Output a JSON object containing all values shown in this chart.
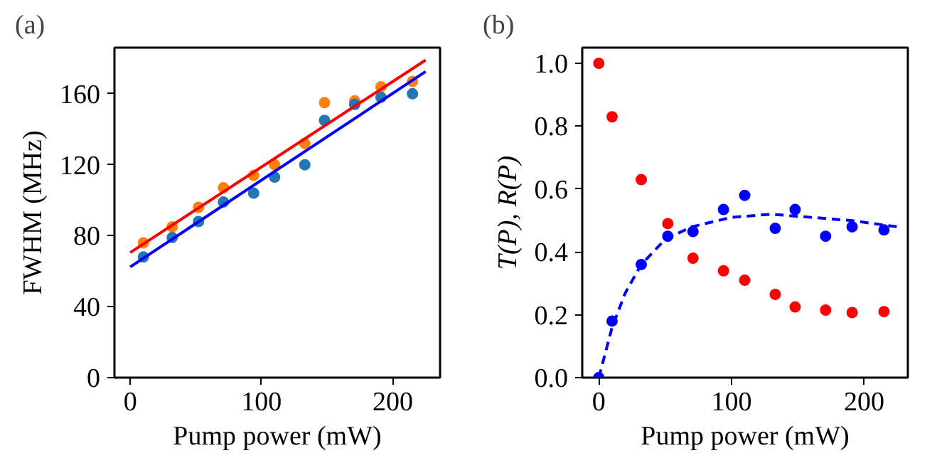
{
  "chart_data": [
    {
      "type": "scatter",
      "title": "(a)",
      "xlabel": "Pump power (mW)",
      "ylabel": "FWHM (MHz)",
      "xlim": [
        -12,
        236
      ],
      "ylim": [
        0,
        186
      ],
      "xticks": [
        0,
        100,
        200
      ],
      "yticks": [
        0,
        40,
        80,
        120,
        160
      ],
      "grid": false,
      "x": [
        10,
        32,
        52,
        71,
        94,
        110,
        133,
        148,
        171,
        191,
        215
      ],
      "series": [
        {
          "color": "#ff7f0e",
          "marker": "circle",
          "values": [
            76,
            85,
            96,
            107,
            114,
            120,
            132,
            155,
            156,
            164,
            167
          ]
        },
        {
          "color": "#1f77b4",
          "marker": "circle",
          "values": [
            68,
            79,
            88,
            99,
            104,
            113,
            120,
            145,
            154,
            158,
            160
          ]
        },
        {
          "type": "line",
          "color": "#ff0000",
          "x": [
            0,
            225
          ],
          "values": [
            70.5,
            179
          ],
          "line_style": "solid"
        },
        {
          "type": "line",
          "color": "#0000ff",
          "x": [
            0,
            225
          ],
          "values": [
            62.4,
            172.5
          ],
          "line_style": "solid"
        }
      ]
    },
    {
      "type": "scatter",
      "title": "(b)",
      "xlabel": "Pump power (mW)",
      "ylabel": "T(P), R(P)",
      "xlim": [
        -12.5,
        233
      ],
      "ylim": [
        0,
        1.05
      ],
      "xticks": [
        0,
        100,
        200
      ],
      "yticks": [
        {
          "value": 0,
          "label": "0.0"
        },
        0.2,
        0.4,
        0.6,
        0.8,
        {
          "value": 1,
          "label": "1.0"
        }
      ],
      "grid": false,
      "x": [
        0,
        10,
        32,
        52,
        71,
        94,
        110,
        133,
        148,
        171,
        191,
        215
      ],
      "series": [
        {
          "color": "#ff0000",
          "marker": "circle",
          "values": [
            1.0,
            0.83,
            0.63,
            0.49,
            0.38,
            0.34,
            0.31,
            0.265,
            0.225,
            0.215,
            0.207,
            0.21
          ]
        },
        {
          "color": "#0000ff",
          "marker": "circle",
          "values": [
            0.0,
            0.18,
            0.36,
            0.45,
            0.465,
            0.535,
            0.58,
            0.475,
            0.535,
            0.45,
            0.48,
            0.47
          ]
        },
        {
          "type": "line",
          "color": "#0000ff",
          "line_style": "dashed",
          "x": [
            0,
            10,
            20,
            32,
            50,
            70,
            100,
            130,
            160,
            190,
            225
          ],
          "values": [
            0.0,
            0.16,
            0.27,
            0.36,
            0.44,
            0.48,
            0.51,
            0.52,
            0.51,
            0.5,
            0.48
          ]
        }
      ]
    }
  ]
}
